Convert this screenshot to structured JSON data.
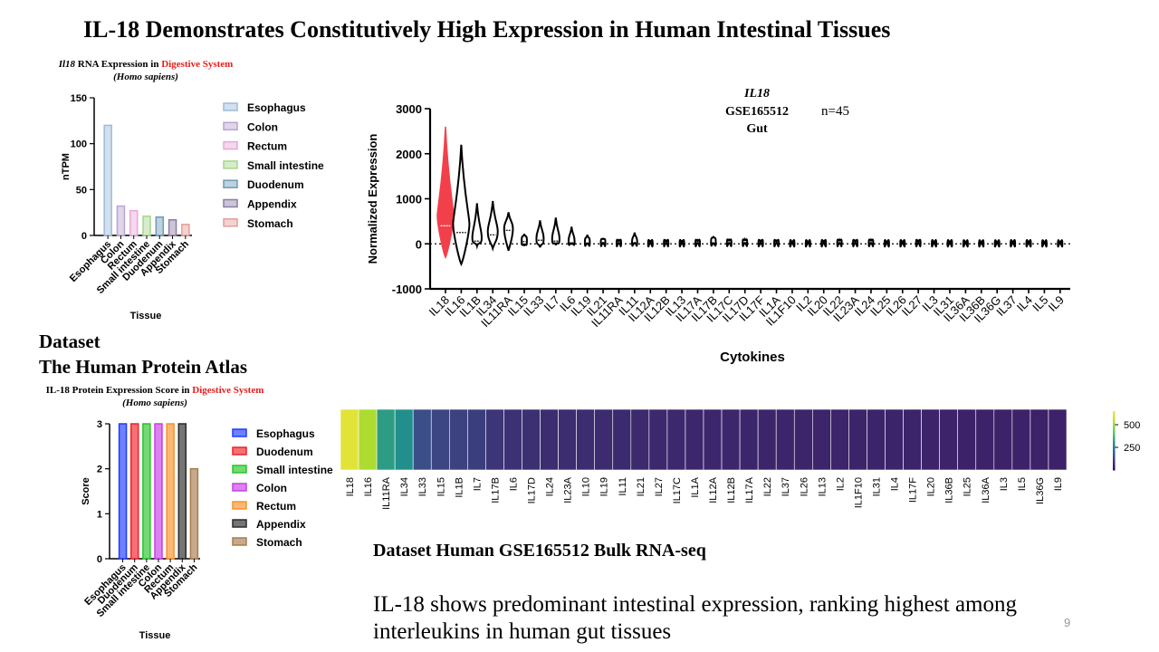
{
  "slide": {
    "title": "IL-18 Demonstrates Constitutively High Expression in Human Intestinal Tissues",
    "dataset_label": "Dataset",
    "dataset_source": "The Human Protein Atlas",
    "bulk_label": "Dataset Human GSE165512 Bulk RNA-seq",
    "conclusion": "IL-18 shows predominant intestinal expression, ranking highest among interleukins in human gut tissues",
    "page_number": "9"
  },
  "chart_data": [
    {
      "id": "rna",
      "type": "bar",
      "title_italic": "Il18",
      "title_mid": " RNA Expression in ",
      "title_red": "Digestive System",
      "subtitle": "(Homo sapiens)",
      "xlabel": "Tissue",
      "ylabel": "nTPM",
      "ylim": [
        0,
        150
      ],
      "yticks": [
        0,
        50,
        100,
        150
      ],
      "categories": [
        "Esophagus",
        "Colon",
        "Rectum",
        "Small intestine",
        "Duodenum",
        "Appendix",
        "Stomach"
      ],
      "values": [
        120,
        32,
        27,
        21,
        20,
        17,
        12
      ],
      "colors": [
        "#9dbbd8",
        "#bba3d2",
        "#e7a9d9",
        "#a7d58d",
        "#6c9bb6",
        "#8c7fa6",
        "#e59d9a"
      ],
      "legend": [
        "Esophagus",
        "Colon",
        "Rectum",
        "Small intestine",
        "Duodenum",
        "Appendix",
        "Stomach"
      ],
      "legend_position": "right"
    },
    {
      "id": "protein",
      "type": "bar",
      "title_mid": "IL-18 Protein Expression Score in ",
      "title_red": "Digestive System",
      "subtitle": "(Homo sapiens)",
      "xlabel": "Tissue",
      "ylabel": "Score",
      "ylim": [
        0,
        3
      ],
      "yticks": [
        0,
        1,
        2,
        3
      ],
      "categories": [
        "Esophagus",
        "Duodenum",
        "Small intestine",
        "Colon",
        "Rectum",
        "Appendix",
        "Stomach"
      ],
      "values": [
        3,
        3,
        3,
        3,
        3,
        3,
        2
      ],
      "colors": [
        "#1f3bff",
        "#f0222a",
        "#29c529",
        "#c83ee8",
        "#f7922c",
        "#2b2b2b",
        "#a97c4f"
      ],
      "legend": [
        "Esophagus",
        "Duodenum",
        "Small intestine",
        "Colon",
        "Rectum",
        "Appendix",
        "Stomach"
      ],
      "legend_position": "right"
    },
    {
      "id": "violin",
      "type": "violin",
      "title_italic": "IL18",
      "title_dataset": "GSE165512",
      "title_n": "n=45",
      "title_tissue": "Gut",
      "xlabel": "Cytokines",
      "ylabel": "Normalized Expression",
      "ylim": [
        -1000,
        3000
      ],
      "yticks": [
        -1000,
        0,
        1000,
        2000,
        3000
      ],
      "categories": [
        "IL18",
        "IL16",
        "IL1B",
        "IL34",
        "IL11RA",
        "IL15",
        "IL33",
        "IL7",
        "IL6",
        "IL19",
        "IL21",
        "IL11RA",
        "IL11",
        "IL12A",
        "IL12B",
        "IL13",
        "IL17A",
        "IL17B",
        "IL17C",
        "IL17D",
        "IL17F",
        "IL1A",
        "IL1F10",
        "IL2",
        "IL20",
        "IL22",
        "IL23A",
        "IL24",
        "IL25",
        "IL26",
        "IL27",
        "IL3",
        "IL31",
        "IL36A",
        "IL36B",
        "IL36G",
        "IL37",
        "IL4",
        "IL5",
        "IL9"
      ],
      "min": [
        -300,
        -450,
        -50,
        -100,
        -150,
        -50,
        -80,
        -30,
        -20,
        -20,
        -10,
        -10,
        -10,
        -10,
        -10,
        -10,
        -10,
        -20,
        -10,
        -10,
        -10,
        -10,
        -10,
        -10,
        -10,
        -10,
        -10,
        -10,
        -10,
        -10,
        -10,
        -10,
        -10,
        -10,
        -10,
        -10,
        -10,
        -10,
        -10,
        -10
      ],
      "max": [
        2600,
        2200,
        900,
        950,
        700,
        220,
        520,
        580,
        380,
        200,
        130,
        70,
        250,
        50,
        60,
        50,
        70,
        170,
        80,
        90,
        60,
        60,
        40,
        40,
        50,
        80,
        60,
        80,
        40,
        40,
        60,
        40,
        40,
        30,
        30,
        30,
        40,
        40,
        30,
        30
      ],
      "median": [
        400,
        250,
        60,
        200,
        300,
        50,
        80,
        60,
        20,
        10,
        5,
        5,
        5,
        5,
        5,
        5,
        5,
        20,
        10,
        10,
        5,
        5,
        5,
        5,
        5,
        5,
        5,
        5,
        5,
        5,
        5,
        5,
        5,
        5,
        5,
        5,
        5,
        5,
        5,
        5
      ],
      "highlight": "IL18",
      "highlight_color": "#f2404b"
    },
    {
      "id": "heatmap",
      "type": "heatmap",
      "categories": [
        "IL18",
        "IL16",
        "IL11RA",
        "IL34",
        "IL33",
        "IL15",
        "IL1B",
        "IL7",
        "IL17B",
        "IL6",
        "IL17D",
        "IL24",
        "IL23A",
        "IL10",
        "IL19",
        "IL11",
        "IL21",
        "IL27",
        "IL17C",
        "IL1A",
        "IL12A",
        "IL12B",
        "IL17A",
        "IL22",
        "IL37",
        "IL26",
        "IL13",
        "IL2",
        "IL1F10",
        "IL31",
        "IL4",
        "IL17F",
        "IL20",
        "IL36B",
        "IL25",
        "IL36A",
        "IL3",
        "IL5",
        "IL36G",
        "IL9"
      ],
      "values": [
        620,
        520,
        290,
        260,
        110,
        90,
        80,
        70,
        50,
        40,
        35,
        30,
        28,
        26,
        24,
        22,
        20,
        18,
        16,
        15,
        14,
        13,
        12,
        11,
        10,
        10,
        9,
        9,
        8,
        8,
        7,
        7,
        6,
        6,
        5,
        5,
        4,
        4,
        3,
        3
      ],
      "colorbar_ticks": [
        250,
        500
      ],
      "colorbar_range": [
        0,
        650
      ]
    }
  ]
}
